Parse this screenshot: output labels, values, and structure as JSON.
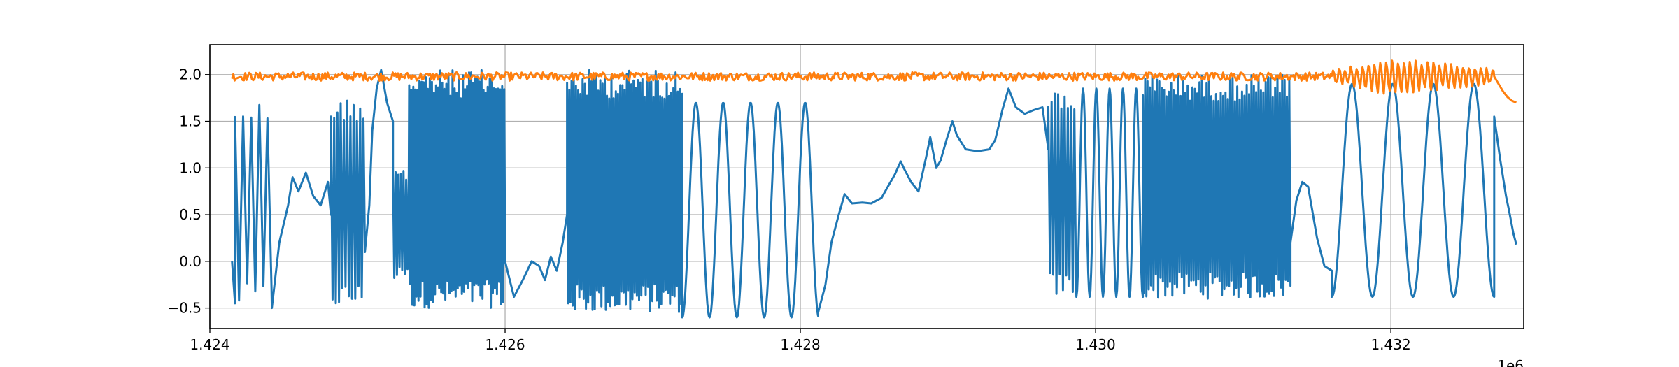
{
  "chart_data": {
    "type": "line",
    "title": "",
    "xlabel": "",
    "ylabel": "",
    "x_offset_label": "1e6",
    "xlim": [
      1424000,
      1432900
    ],
    "ylim": [
      -0.72,
      2.32
    ],
    "grid": true,
    "x_ticks": [
      1424000,
      1426000,
      1428000,
      1430000,
      1432000
    ],
    "x_tick_labels": [
      "1.424",
      "1.426",
      "1.428",
      "1.430",
      "1.432"
    ],
    "y_ticks": [
      -0.5,
      0.0,
      0.5,
      1.0,
      1.5,
      2.0
    ],
    "y_tick_labels": [
      "−0.5",
      "0.0",
      "0.5",
      "1.0",
      "1.5",
      "2.0"
    ],
    "series": [
      {
        "color": "#1f77b4",
        "segments": [
          {
            "kind": "points",
            "points": [
              [
                1424150,
                0.0
              ],
              [
                1424170,
                -0.45
              ]
            ]
          },
          {
            "kind": "osc",
            "x0": 1424170,
            "x1": 1424420,
            "lo": -0.5,
            "hi": 1.72,
            "period": 55
          },
          {
            "kind": "points",
            "points": [
              [
                1424420,
                -0.5
              ],
              [
                1424470,
                0.2
              ],
              [
                1424530,
                0.6
              ],
              [
                1424560,
                0.9
              ],
              [
                1424600,
                0.75
              ],
              [
                1424650,
                0.95
              ],
              [
                1424700,
                0.7
              ],
              [
                1424750,
                0.6
              ],
              [
                1424800,
                0.85
              ],
              [
                1424820,
                0.5
              ]
            ]
          },
          {
            "kind": "osc",
            "x0": 1424820,
            "x1": 1425050,
            "lo": -0.5,
            "hi": 1.75,
            "period": 22
          },
          {
            "kind": "points",
            "points": [
              [
                1425050,
                0.1
              ],
              [
                1425080,
                0.6
              ],
              [
                1425100,
                1.4
              ],
              [
                1425130,
                1.85
              ],
              [
                1425160,
                2.05
              ],
              [
                1425200,
                1.7
              ],
              [
                1425240,
                1.5
              ]
            ]
          },
          {
            "kind": "osc",
            "x0": 1425240,
            "x1": 1425350,
            "lo": -0.2,
            "hi": 1.0,
            "period": 18
          },
          {
            "kind": "osc",
            "x0": 1425350,
            "x1": 1426000,
            "lo": -0.5,
            "hi": 2.05,
            "period": 14
          },
          {
            "kind": "points",
            "points": [
              [
                1426000,
                0.0
              ],
              [
                1426060,
                -0.38
              ],
              [
                1426120,
                -0.2
              ],
              [
                1426180,
                0.0
              ],
              [
                1426230,
                -0.05
              ],
              [
                1426270,
                -0.2
              ],
              [
                1426310,
                0.05
              ],
              [
                1426350,
                -0.1
              ],
              [
                1426390,
                0.2
              ],
              [
                1426420,
                0.5
              ]
            ]
          },
          {
            "kind": "osc",
            "x0": 1426420,
            "x1": 1427200,
            "lo": -0.55,
            "hi": 2.05,
            "period": 15
          },
          {
            "kind": "sine",
            "x0": 1427200,
            "x1": 1428120,
            "lo": -0.6,
            "hi": 1.7,
            "period": 185
          },
          {
            "kind": "points",
            "points": [
              [
                1428120,
                -0.55
              ],
              [
                1428170,
                -0.25
              ],
              [
                1428210,
                0.2
              ],
              [
                1428260,
                0.5
              ],
              [
                1428300,
                0.72
              ],
              [
                1428350,
                0.62
              ],
              [
                1428420,
                0.63
              ],
              [
                1428480,
                0.62
              ],
              [
                1428550,
                0.68
              ],
              [
                1428600,
                0.82
              ],
              [
                1428640,
                0.93
              ],
              [
                1428680,
                1.07
              ],
              [
                1428700,
                1.0
              ],
              [
                1428750,
                0.85
              ],
              [
                1428800,
                0.75
              ],
              [
                1428850,
                1.1
              ],
              [
                1428880,
                1.33
              ],
              [
                1428920,
                1.0
              ],
              [
                1428950,
                1.08
              ],
              [
                1428990,
                1.3
              ],
              [
                1429030,
                1.5
              ],
              [
                1429060,
                1.35
              ],
              [
                1429120,
                1.2
              ],
              [
                1429200,
                1.18
              ],
              [
                1429280,
                1.2
              ],
              [
                1429320,
                1.3
              ],
              [
                1429370,
                1.63
              ],
              [
                1429410,
                1.85
              ],
              [
                1429460,
                1.65
              ],
              [
                1429520,
                1.58
              ],
              [
                1429580,
                1.62
              ],
              [
                1429640,
                1.65
              ],
              [
                1429680,
                1.2
              ]
            ]
          },
          {
            "kind": "osc",
            "x0": 1429680,
            "x1": 1429870,
            "lo": -0.38,
            "hi": 1.85,
            "period": 22
          },
          {
            "kind": "sine",
            "x0": 1429870,
            "x1": 1430320,
            "lo": -0.38,
            "hi": 1.85,
            "period": 90
          },
          {
            "kind": "osc",
            "x0": 1430320,
            "x1": 1431320,
            "lo": -0.4,
            "hi": 2.0,
            "period": 16
          },
          {
            "kind": "points",
            "points": [
              [
                1431320,
                0.2
              ],
              [
                1431360,
                0.65
              ],
              [
                1431400,
                0.85
              ],
              [
                1431440,
                0.8
              ],
              [
                1431500,
                0.25
              ],
              [
                1431550,
                -0.05
              ],
              [
                1431600,
                -0.1
              ]
            ]
          },
          {
            "kind": "sine",
            "x0": 1431600,
            "x1": 1432700,
            "lo": -0.38,
            "hi": 1.9,
            "period": 275
          },
          {
            "kind": "points",
            "points": [
              [
                1432700,
                1.55
              ],
              [
                1432740,
                1.1
              ],
              [
                1432780,
                0.7
              ],
              [
                1432800,
                0.55
              ],
              [
                1432830,
                0.3
              ],
              [
                1432850,
                0.18
              ]
            ]
          }
        ]
      },
      {
        "color": "#ff7f0e",
        "segments": [
          {
            "kind": "noise",
            "x0": 1424150,
            "x1": 1431600,
            "base": 1.98,
            "amp": 0.045,
            "step": 9
          },
          {
            "kind": "growing",
            "x0": 1431600,
            "x1": 1432700,
            "base": 1.98,
            "amp_start": 0.05,
            "amp_peak": 0.18,
            "amp_end": 0.07,
            "step": 8
          },
          {
            "kind": "points",
            "points": [
              [
                1432700,
                1.98
              ],
              [
                1432730,
                1.9
              ],
              [
                1432760,
                1.82
              ],
              [
                1432790,
                1.76
              ],
              [
                1432820,
                1.72
              ],
              [
                1432850,
                1.7
              ]
            ]
          }
        ]
      }
    ]
  }
}
